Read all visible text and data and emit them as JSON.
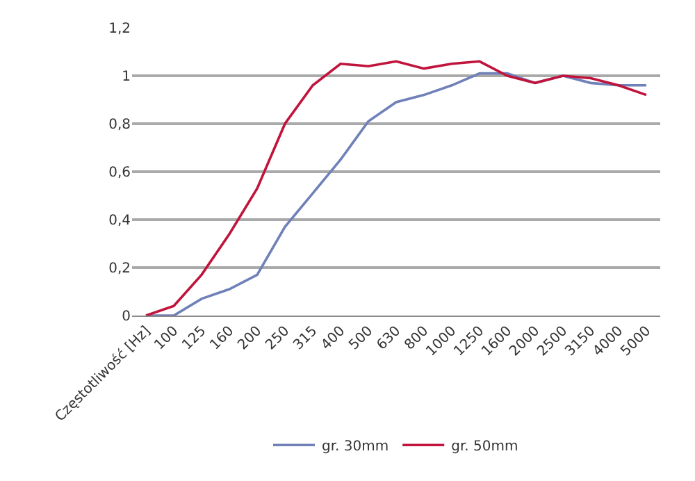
{
  "chart_data": {
    "type": "line",
    "categories": [
      "Częstotliwość [Hz]",
      "100",
      "125",
      "160",
      "200",
      "250",
      "315",
      "400",
      "500",
      "630",
      "800",
      "1000",
      "1250",
      "1600",
      "2000",
      "2500",
      "3150",
      "4000",
      "5000"
    ],
    "series": [
      {
        "name": "gr. 30mm",
        "color": "#7080b8",
        "values": [
          0,
          0,
          0.07,
          0.11,
          0.17,
          0.37,
          0.51,
          0.65,
          0.81,
          0.89,
          0.92,
          0.96,
          1.01,
          1.01,
          0.97,
          1.0,
          0.97,
          0.96,
          0.96
        ]
      },
      {
        "name": "gr. 50mm",
        "color": "#c0143c",
        "values": [
          0,
          0.04,
          0.17,
          0.34,
          0.53,
          0.8,
          0.96,
          1.05,
          1.04,
          1.06,
          1.03,
          1.05,
          1.06,
          1.0,
          0.97,
          1.0,
          0.99,
          0.96,
          0.92
        ]
      }
    ],
    "ylim": [
      0,
      1.2
    ],
    "yticks": [
      0,
      {
        "value": 0.2,
        "label": "0,2"
      },
      {
        "value": 0.4,
        "label": "0,4"
      },
      {
        "value": 0.6,
        "label": "0,6"
      },
      {
        "value": 0.8,
        "label": "0,8"
      },
      1,
      {
        "value": 1.2,
        "label": "1,2"
      }
    ],
    "grid": "y",
    "legend": "bottom",
    "marker": "none",
    "line_style": "solid"
  }
}
